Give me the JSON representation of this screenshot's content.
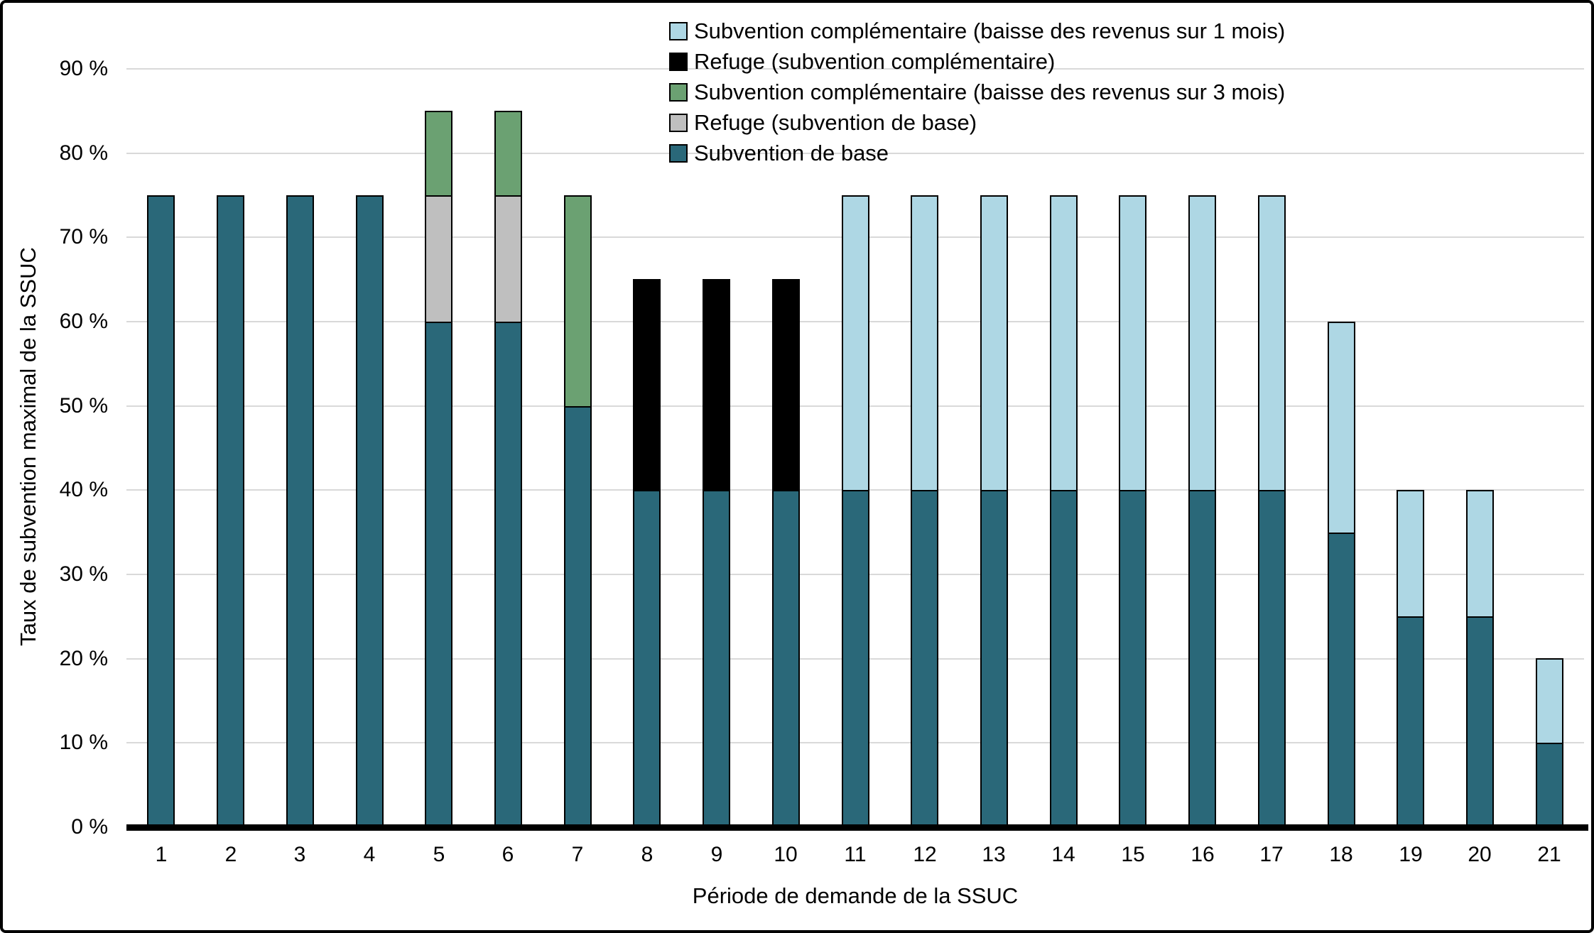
{
  "chart_data": {
    "type": "bar",
    "stacked": true,
    "xlabel": "Période de demande de la SSUC",
    "ylabel": "Taux de subvention maximal de la SSUC",
    "ylim": [
      0,
      90
    ],
    "grid": "horizontal-light-gray",
    "legend_position": "top-right",
    "background": "#FFFFFF",
    "gridline_color": "#D9D9D9",
    "axis_line_color": "#000000",
    "yticks": [
      "0 %",
      "10 %",
      "20 %",
      "30 %",
      "40 %",
      "50 %",
      "60 %",
      "70 %",
      "80 %",
      "90 %"
    ],
    "categories": [
      "1",
      "2",
      "3",
      "4",
      "5",
      "6",
      "7",
      "8",
      "9",
      "10",
      "11",
      "12",
      "13",
      "14",
      "15",
      "16",
      "17",
      "18",
      "19",
      "20",
      "21"
    ],
    "series": [
      {
        "key": "base",
        "name": "Subvention de base",
        "color": "#2A6879",
        "values": [
          75,
          75,
          75,
          75,
          60,
          60,
          50,
          40,
          40,
          40,
          40,
          40,
          40,
          40,
          40,
          40,
          40,
          35,
          25,
          25,
          10
        ]
      },
      {
        "key": "refuge_base",
        "name": "Refuge (subvention de base)",
        "color": "#BFBFBF",
        "values": [
          0,
          0,
          0,
          0,
          15,
          15,
          0,
          0,
          0,
          0,
          0,
          0,
          0,
          0,
          0,
          0,
          0,
          0,
          0,
          0,
          0
        ]
      },
      {
        "key": "comp_3mois",
        "name": "Subvention complémentaire (baisse des revenus sur 3 mois)",
        "color": "#6BA172",
        "values": [
          0,
          0,
          0,
          0,
          10,
          10,
          25,
          0,
          0,
          0,
          0,
          0,
          0,
          0,
          0,
          0,
          0,
          0,
          0,
          0,
          0
        ]
      },
      {
        "key": "refuge_comp",
        "name": "Refuge (subvention complémentaire)",
        "color": "#000000",
        "values": [
          0,
          0,
          0,
          0,
          0,
          0,
          0,
          25,
          25,
          25,
          0,
          0,
          0,
          0,
          0,
          0,
          0,
          0,
          0,
          0,
          0
        ]
      },
      {
        "key": "comp_1mois",
        "name": "Subvention complémentaire (baisse des revenus sur 1 mois)",
        "color": "#AED7E4",
        "values": [
          0,
          0,
          0,
          0,
          0,
          0,
          0,
          0,
          0,
          0,
          35,
          35,
          35,
          35,
          35,
          35,
          35,
          25,
          15,
          15,
          10
        ]
      }
    ],
    "legend_order": [
      "comp_1mois",
      "refuge_comp",
      "comp_3mois",
      "refuge_base",
      "base"
    ]
  }
}
